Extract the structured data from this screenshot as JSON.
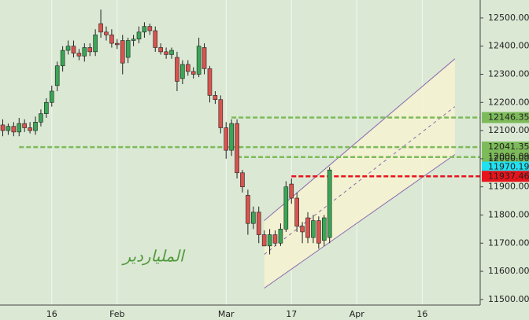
{
  "chart_data": {
    "type": "candlestick",
    "categories": [
      null,
      null,
      null,
      null,
      null,
      null,
      null,
      null,
      null,
      "16",
      null,
      null,
      null,
      null,
      null,
      null,
      null,
      null,
      null,
      null,
      null,
      "Feb",
      null,
      null,
      null,
      null,
      null,
      null,
      null,
      null,
      null,
      null,
      null,
      null,
      null,
      null,
      null,
      null,
      null,
      null,
      null,
      "Mar",
      null,
      null,
      null,
      null,
      null,
      null,
      null,
      null,
      null,
      null,
      null,
      "17",
      null,
      null,
      null,
      null,
      null,
      null,
      null,
      null,
      null,
      null,
      null,
      "Apr",
      null,
      null,
      null,
      null,
      null,
      null,
      null,
      null,
      null,
      null,
      null,
      "16",
      null,
      null,
      null,
      null,
      null,
      null,
      null,
      null,
      null,
      null
    ],
    "open": [
      12120,
      12100,
      12115,
      12095,
      12125,
      12110,
      12100,
      12130,
      12160,
      12200,
      12260,
      12330,
      12385,
      12400,
      12375,
      12365,
      12395,
      12380,
      12480,
      12450,
      12440,
      12410,
      12420,
      12360,
      12420,
      12425,
      12450,
      12470,
      12455,
      12395,
      12380,
      12370,
      12360,
      12285,
      12335,
      12310,
      12300,
      12395,
      12320,
      12225,
      12210,
      12110,
      12030,
      12125,
      11950,
      11870,
      11770,
      11810,
      11730,
      11690,
      11730,
      11700,
      11750,
      11910,
      11860,
      11760,
      11790,
      11720,
      11780,
      11710,
      11720,
      null,
      null,
      null,
      null,
      null,
      null,
      null,
      null,
      null,
      null,
      null,
      null,
      null,
      null,
      null,
      null,
      null,
      null,
      null,
      null,
      null,
      null,
      null,
      null,
      null,
      null,
      null
    ],
    "high": [
      12140,
      12125,
      12130,
      12145,
      12140,
      12130,
      12150,
      12175,
      12215,
      12260,
      12345,
      12400,
      12420,
      12420,
      12390,
      12410,
      12410,
      12460,
      12530,
      12470,
      12460,
      12425,
      12440,
      12430,
      12440,
      12470,
      12485,
      12480,
      12470,
      12410,
      12395,
      12395,
      12380,
      12350,
      12350,
      12325,
      12430,
      12410,
      12330,
      12240,
      12225,
      12130,
      12140,
      12140,
      11960,
      11890,
      11830,
      11830,
      11745,
      11750,
      11745,
      11770,
      11920,
      11930,
      11880,
      11775,
      11810,
      11800,
      11795,
      11800,
      11970,
      null,
      null,
      null,
      null,
      null,
      null,
      null,
      null,
      null,
      null,
      null,
      null,
      null,
      null,
      null,
      null,
      null,
      null,
      null,
      null,
      null,
      null,
      null,
      null,
      null,
      null,
      null
    ],
    "low": [
      12080,
      12085,
      12080,
      12080,
      12095,
      12090,
      12085,
      12115,
      12145,
      12185,
      12240,
      12310,
      12370,
      12360,
      12350,
      12345,
      12365,
      12365,
      12430,
      12420,
      12395,
      12390,
      12300,
      12340,
      12400,
      12410,
      12430,
      12440,
      12380,
      12370,
      12355,
      12355,
      12240,
      12265,
      12295,
      12285,
      12290,
      12300,
      12200,
      12195,
      12090,
      12000,
      12010,
      11930,
      11880,
      11730,
      11750,
      11700,
      11690,
      11660,
      11690,
      11690,
      11740,
      11840,
      11740,
      11700,
      11700,
      11700,
      11680,
      11690,
      11700,
      null,
      null,
      null,
      null,
      null,
      null,
      null,
      null,
      null,
      null,
      null,
      null,
      null,
      null,
      null,
      null,
      null,
      null,
      null,
      null,
      null,
      null,
      null,
      null,
      null,
      null,
      null
    ],
    "close": [
      12100,
      12115,
      12095,
      12125,
      12110,
      12100,
      12130,
      12160,
      12200,
      12240,
      12330,
      12385,
      12400,
      12375,
      12365,
      12395,
      12380,
      12440,
      12450,
      12440,
      12410,
      12405,
      12340,
      12420,
      12425,
      12450,
      12470,
      12455,
      12395,
      12380,
      12370,
      12385,
      12275,
      12335,
      12310,
      12300,
      12400,
      12320,
      12225,
      12210,
      12110,
      12030,
      12125,
      11950,
      11900,
      11770,
      11810,
      11730,
      11690,
      11730,
      11700,
      11750,
      11900,
      11860,
      11760,
      11740,
      11720,
      11780,
      11700,
      11790,
      11960,
      null,
      null,
      null,
      null,
      null,
      null,
      null,
      null,
      null,
      null,
      null,
      null,
      null,
      null,
      null,
      null,
      null,
      null,
      null,
      null,
      null,
      null,
      null,
      null,
      null,
      null,
      null
    ],
    "up_color": "#3aa655",
    "down_color": "#d9534f",
    "ylim": [
      11480,
      12564
    ],
    "yticks": [
      {
        "value": 11500,
        "label": "11500.00"
      },
      {
        "value": 11600,
        "label": "11600.00"
      },
      {
        "value": 11700,
        "label": "11700.00"
      },
      {
        "value": 11800,
        "label": "11800.00"
      },
      {
        "value": 11900,
        "label": "11900.00"
      },
      {
        "value": 12000,
        "label": "12000.00"
      },
      {
        "value": 12100,
        "label": "12100.00"
      },
      {
        "value": 12200,
        "label": "12200.00"
      },
      {
        "value": 12300,
        "label": "12300.00"
      },
      {
        "value": 12400,
        "label": "12400.00"
      },
      {
        "value": 12500,
        "label": "12500.00"
      }
    ],
    "grid": true,
    "levels": [
      {
        "value": 12146.35,
        "start": 42,
        "color": "#7dbb5a",
        "line": true
      },
      {
        "value": 12041.35,
        "start": 3,
        "color": "#7dbb5a",
        "line": true
      },
      {
        "value": 12006.09,
        "start": 43,
        "color": "#7dbb5a",
        "line": true
      },
      {
        "value": 11970.19,
        "start": 60,
        "color": "#22e0f0",
        "line": false
      },
      {
        "value": 11937.46,
        "start": 53,
        "color": "#e8141c",
        "line": true
      }
    ],
    "channel": {
      "x": [
        48,
        83
      ],
      "upper": [
        11780,
        12355
      ],
      "lower": [
        11540,
        12015
      ]
    },
    "watermark": "الملياردير"
  }
}
